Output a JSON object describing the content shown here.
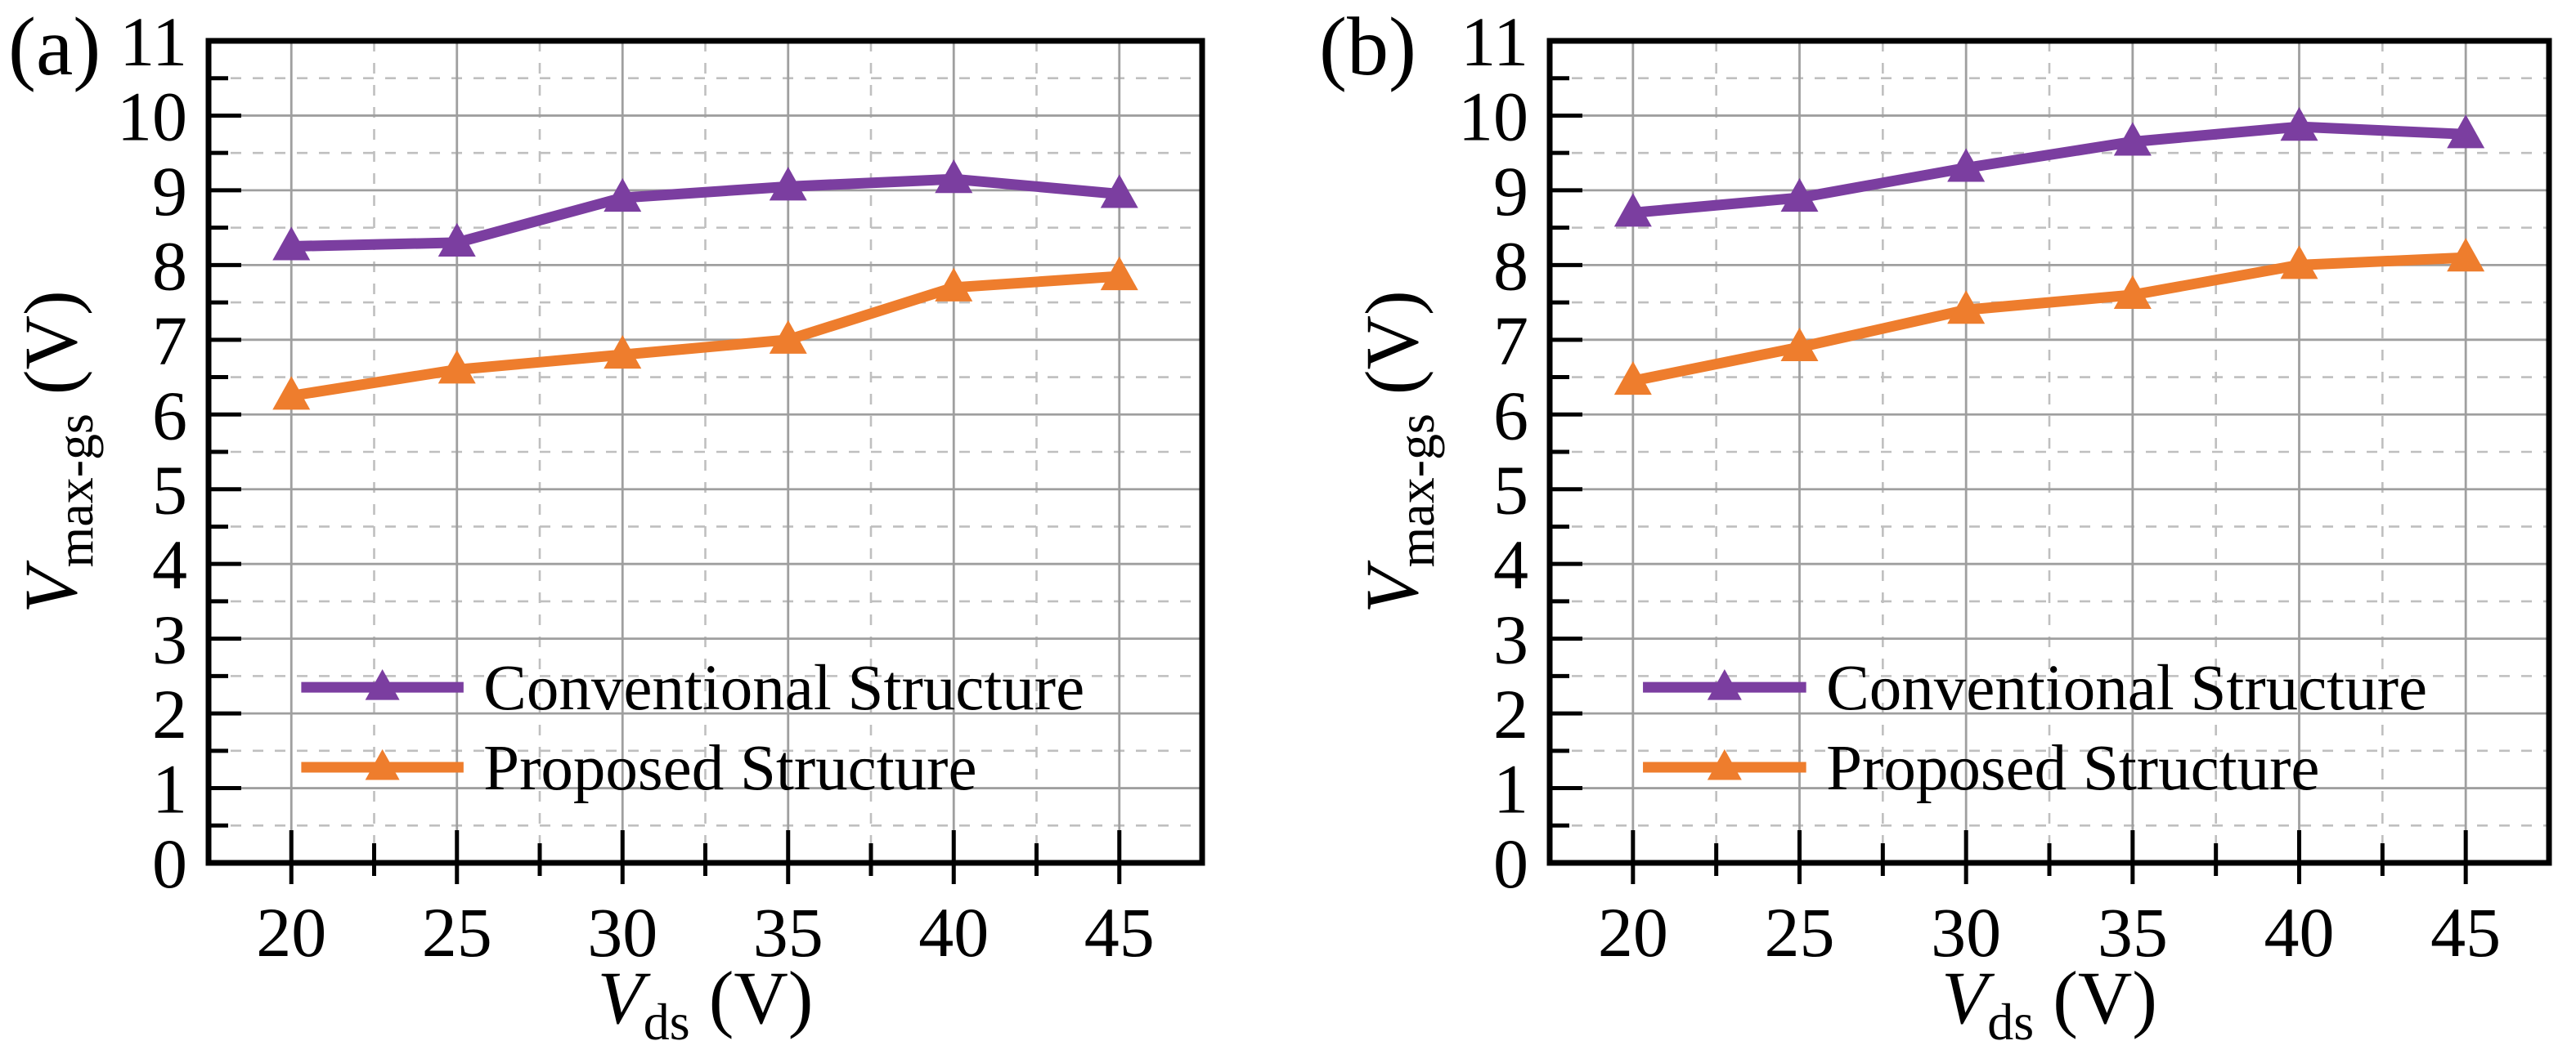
{
  "figure": {
    "background": "#ffffff",
    "text_color": "#000000",
    "frame_color": "#000000",
    "grid_major_color": "#9f9f9f",
    "grid_minor_color": "#bfbfbf"
  },
  "chart_data": [
    {
      "type": "line",
      "panel_label": "(a)",
      "xlabel": "V_ds (V)",
      "ylabel": "V_max-gs (V)",
      "xlabel_parts": {
        "main": "V",
        "sub": "ds",
        "rest": " (V)"
      },
      "ylabel_parts": {
        "main": "V",
        "sub": "max-gs",
        "rest": " (V)"
      },
      "x": [
        20,
        25,
        30,
        35,
        40,
        45
      ],
      "xticks": [
        20,
        25,
        30,
        35,
        40,
        45
      ],
      "yticks": [
        0,
        1,
        2,
        3,
        4,
        5,
        6,
        7,
        8,
        9,
        10,
        11
      ],
      "xlim": [
        17.5,
        47.5
      ],
      "ylim": [
        0,
        11
      ],
      "grid": {
        "major": "solid",
        "minor": "dashed",
        "minor_step": 0.5
      },
      "legend": {
        "position": "inside-lower-left",
        "entries": [
          "Conventional Structure",
          "Proposed Structure"
        ]
      },
      "series": [
        {
          "name": "Conventional Structure",
          "color": "#7b3ea0",
          "marker": "triangle-up",
          "values": [
            8.25,
            8.3,
            8.9,
            9.05,
            9.15,
            8.95
          ]
        },
        {
          "name": "Proposed Structure",
          "color": "#ee7d2d",
          "marker": "triangle-up",
          "values": [
            6.25,
            6.6,
            6.8,
            7.0,
            7.7,
            7.85
          ]
        }
      ]
    },
    {
      "type": "line",
      "panel_label": "(b)",
      "xlabel": "V_ds (V)",
      "ylabel": "V_max-gs (V)",
      "xlabel_parts": {
        "main": "V",
        "sub": "ds",
        "rest": " (V)"
      },
      "ylabel_parts": {
        "main": "V",
        "sub": "max-gs",
        "rest": " (V)"
      },
      "x": [
        20,
        25,
        30,
        35,
        40,
        45
      ],
      "xticks": [
        20,
        25,
        30,
        35,
        40,
        45
      ],
      "yticks": [
        0,
        1,
        2,
        3,
        4,
        5,
        6,
        7,
        8,
        9,
        10,
        11
      ],
      "xlim": [
        17.5,
        47.5
      ],
      "ylim": [
        0,
        11
      ],
      "grid": {
        "major": "solid",
        "minor": "dashed",
        "minor_step": 0.5
      },
      "legend": {
        "position": "inside-lower-left",
        "entries": [
          "Conventional Structure",
          "Proposed Structure"
        ]
      },
      "series": [
        {
          "name": "Conventional Structure",
          "color": "#7b3ea0",
          "marker": "triangle-up",
          "values": [
            8.7,
            8.9,
            9.3,
            9.65,
            9.85,
            9.75
          ]
        },
        {
          "name": "Proposed Structure",
          "color": "#ee7d2d",
          "marker": "triangle-up",
          "values": [
            6.45,
            6.9,
            7.4,
            7.6,
            8.0,
            8.1
          ]
        }
      ]
    }
  ]
}
